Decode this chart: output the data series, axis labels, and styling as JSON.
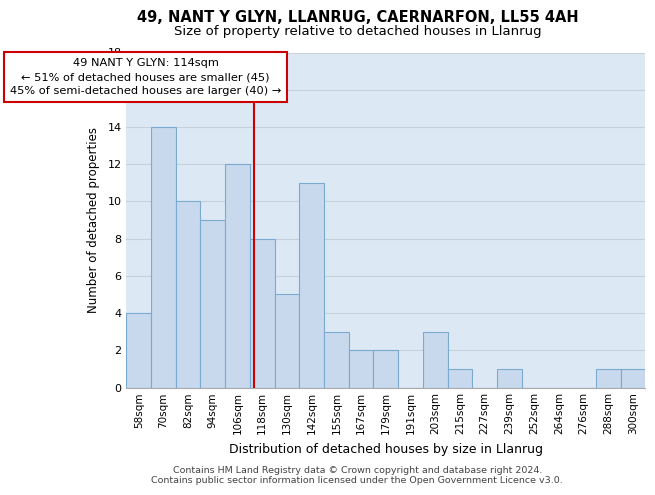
{
  "title": "49, NANT Y GLYN, LLANRUG, CAERNARFON, LL55 4AH",
  "subtitle": "Size of property relative to detached houses in Llanrug",
  "xlabel": "Distribution of detached houses by size in Llanrug",
  "ylabel": "Number of detached properties",
  "bar_labels": [
    "58sqm",
    "70sqm",
    "82sqm",
    "94sqm",
    "106sqm",
    "118sqm",
    "130sqm",
    "142sqm",
    "155sqm",
    "167sqm",
    "179sqm",
    "191sqm",
    "203sqm",
    "215sqm",
    "227sqm",
    "239sqm",
    "252sqm",
    "264sqm",
    "276sqm",
    "288sqm",
    "300sqm"
  ],
  "bar_values": [
    4,
    14,
    10,
    9,
    12,
    8,
    5,
    11,
    3,
    2,
    2,
    0,
    3,
    1,
    0,
    1,
    0,
    0,
    0,
    1,
    1
  ],
  "bar_color": "#c8d9ee",
  "bar_edge_color": "#7aaad0",
  "vline_color": "#cc0000",
  "annotation_line1": "49 NANT Y GLYN: 114sqm",
  "annotation_line2": "← 51% of detached houses are smaller (45)",
  "annotation_line3": "45% of semi-detached houses are larger (40) →",
  "annotation_box_color": "#cc0000",
  "annotation_box_bg": "#ffffff",
  "ylim": [
    0,
    18
  ],
  "yticks": [
    0,
    2,
    4,
    6,
    8,
    10,
    12,
    14,
    16,
    18
  ],
  "grid_color": "#c8d0dc",
  "bg_color": "#dde8f5",
  "footer_line1": "Contains HM Land Registry data © Crown copyright and database right 2024.",
  "footer_line2": "Contains public sector information licensed under the Open Government Licence v3.0."
}
